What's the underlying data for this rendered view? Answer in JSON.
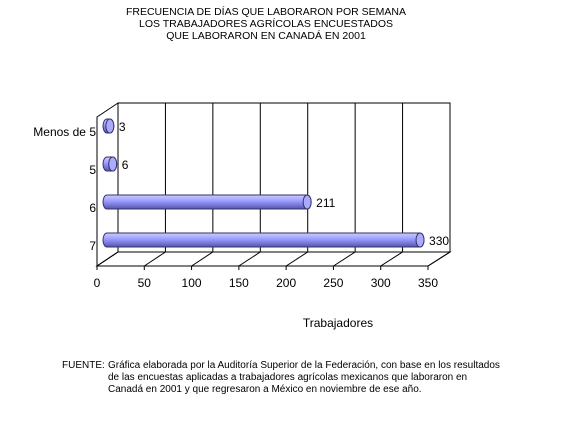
{
  "chart_data": {
    "type": "bar3d",
    "title": [
      "FRECUENCIA DE DÍAS QUE LABORARON POR SEMANA",
      "LOS TRABAJADORES AGRÍCOLAS ENCUESTADOS",
      "QUE LABORARON  EN CANADÁ EN 2001"
    ],
    "categories": [
      "Menos de 5",
      "5",
      "6",
      "7"
    ],
    "values": [
      3,
      6,
      211,
      330
    ],
    "color": "#9999ff",
    "xlabel": "Trabajadores",
    "xlim": [
      0,
      350
    ],
    "xticks": [
      0,
      50,
      100,
      150,
      200,
      250,
      300,
      350
    ],
    "grid": true
  },
  "footnote": {
    "label": "FUENTE:",
    "text": "Gráfica elaborada por la Auditoría Superior de la Federación, con base en los resultados de las encuestas aplicadas a trabajadores agrícolas mexicanos que laboraron en Canadá en 2001 y que regresaron a México en noviembre de ese año."
  }
}
